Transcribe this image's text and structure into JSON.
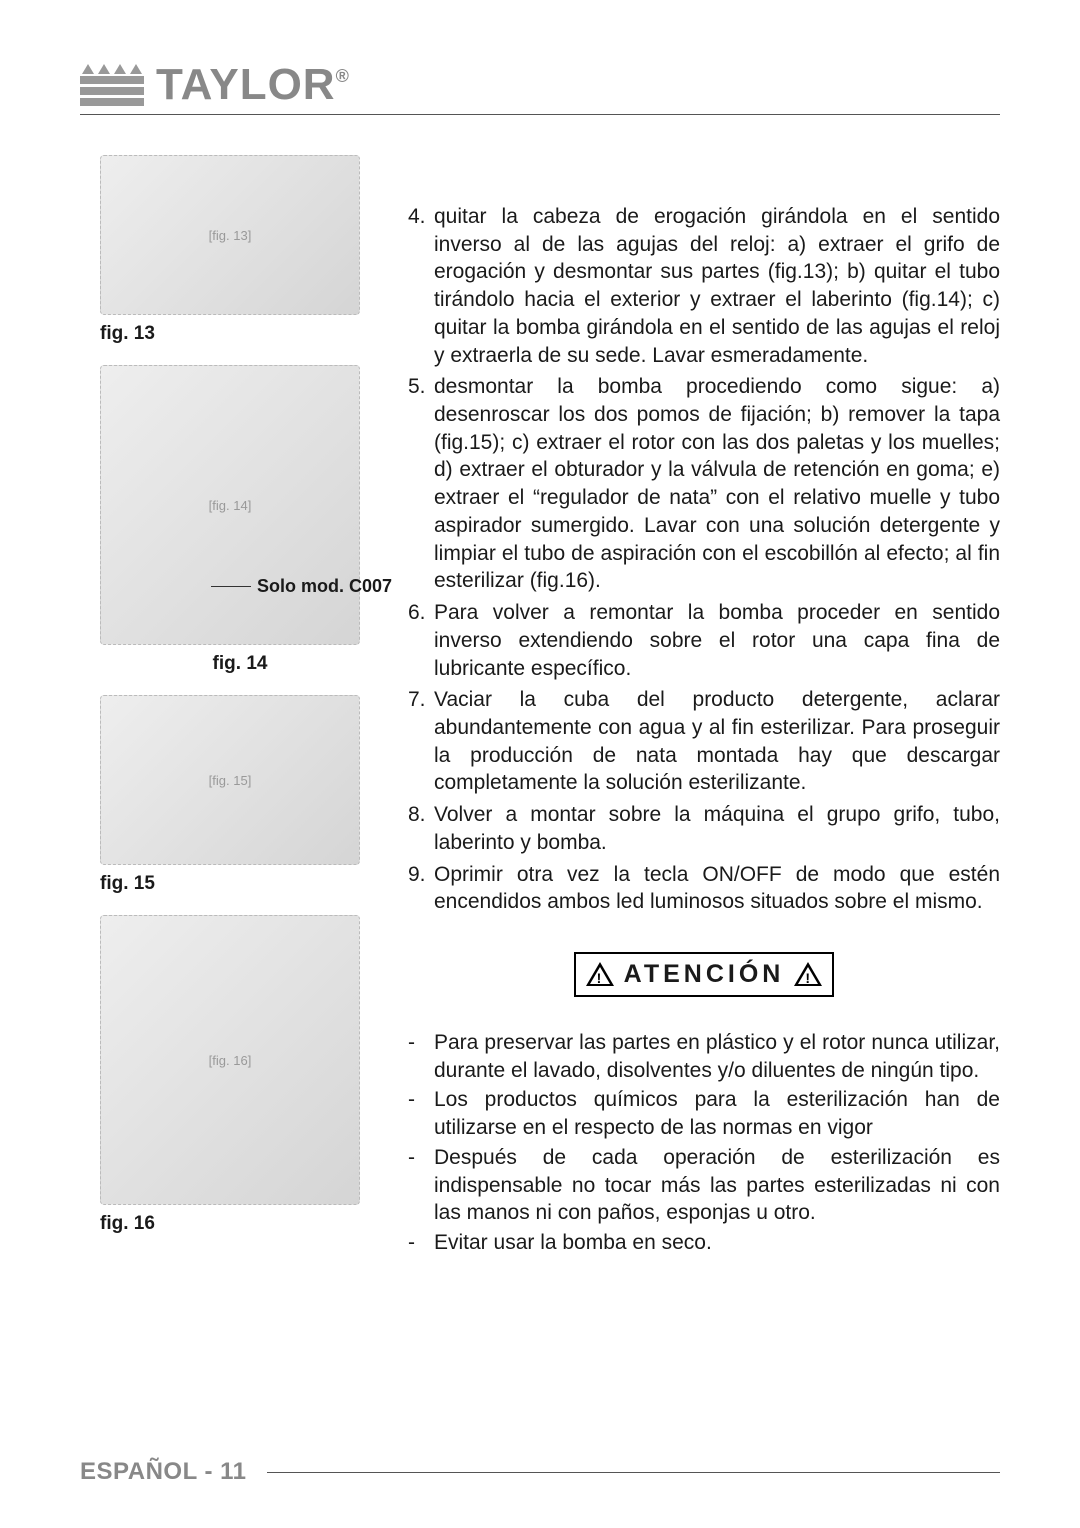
{
  "brand": {
    "name": "TAYLOR",
    "mark": "®"
  },
  "figures": {
    "f13": {
      "label": "fig. 13",
      "alt": "[fig. 13]"
    },
    "f14": {
      "label": "fig. 14",
      "alt": "[fig. 14]",
      "note": "Solo mod. C007"
    },
    "f15": {
      "label": "fig. 15",
      "alt": "[fig. 15]"
    },
    "f16": {
      "label": "fig. 16",
      "alt": "[fig. 16]"
    }
  },
  "steps": {
    "s4": {
      "n": "4.",
      "t": "quitar la cabeza de erogación girándola en el sentido inverso al de las agujas del reloj: a) extraer el grifo de erogación y desmontar sus partes (fig.13); b) quitar el tubo tirándolo hacia el exterior y extraer el laberinto (fig.14); c) quitar la bomba girándola en el sentido de las agujas el reloj y extraerla de su sede. Lavar esmeradamente."
    },
    "s5": {
      "n": "5.",
      "t": "desmontar la bomba procediendo como sigue: a) desenroscar los dos pomos de fijación; b) remover la tapa (fig.15); c) extraer el rotor con las dos paletas y los muelles; d) extraer el obturador y la válvula de retención en goma; e) extraer el “regulador de nata” con el relativo muelle y tubo aspirador sumergido. Lavar con una solución detergente y limpiar el tubo de aspiración con el escobillón al efecto; al fin esterilizar (fig.16)."
    },
    "s6": {
      "n": "6.",
      "t": "Para volver a remontar la bomba proceder en sentido inverso extendiendo sobre el rotor una capa fina de lubricante específico."
    },
    "s7": {
      "n": "7.",
      "t": "Vaciar la cuba del producto detergente, aclarar abundantemente con agua y al fin esterilizar. Para proseguir la producción de nata montada hay que descargar completamente la solución esterilizante."
    },
    "s8": {
      "n": "8.",
      "t": "Volver a montar sobre la máquina el grupo grifo, tubo, laberinto y bomba."
    },
    "s9": {
      "n": "9.",
      "t": "Oprimir otra vez la tecla ON/OFF de modo que estén encendidos ambos led luminosos situados sobre el mismo."
    }
  },
  "attention": {
    "label": "ATENCIÓN"
  },
  "warnings": {
    "w1": "Para preservar las partes en plástico y el rotor nunca utilizar, durante el lavado, disolventes y/o diluentes de ningún tipo.",
    "w2": "Los productos químicos para la esterilización han de utilizarse en el respecto de las normas en vigor",
    "w3": "Después de cada operación de esterilización es indispensable no tocar más las partes esterilizadas ni con las manos ni con paños, esponjas u otro.",
    "w4": "Evitar usar la bomba en seco."
  },
  "footer": {
    "label": "ESPAÑOL - 11"
  },
  "colors": {
    "brand_gray": "#888888",
    "rule": "#555555",
    "text": "#1a1a1a",
    "bg": "#ffffff"
  },
  "typography": {
    "body_pt": 21,
    "brand_pt": 44,
    "footer_pt": 24,
    "fig_label_pt": 19
  }
}
